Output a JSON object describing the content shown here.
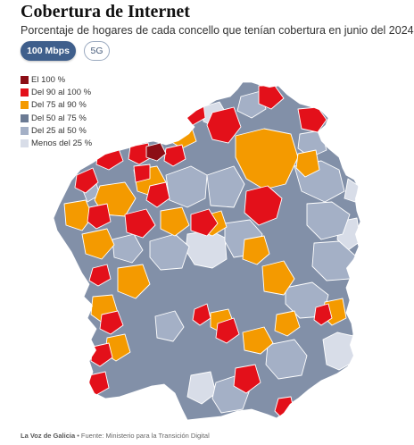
{
  "header": {
    "title": "Cobertura de Internet",
    "subtitle": "Porcentaje de hogares de cada concello que tenían cobertura en junio del 2024"
  },
  "tabs": [
    {
      "label": "100 Mbps",
      "active": true
    },
    {
      "label": "5G",
      "active": false
    }
  ],
  "legend": [
    {
      "label": "El 100 %",
      "color": "#8c0e16"
    },
    {
      "label": "Del 90 al 100 %",
      "color": "#e3101a"
    },
    {
      "label": "Del 75 al 90 %",
      "color": "#f49a00"
    },
    {
      "label": "Del 50 al 75 %",
      "color": "#6b7a93"
    },
    {
      "label": "Del 25 al 50 %",
      "color": "#a4b0c6"
    },
    {
      "label": "Menos del 25 %",
      "color": "#d8dde8"
    }
  ],
  "footer": {
    "brand": "La Voz de Galicia",
    "source": " • Fuente: Ministerio para la Transición Digital"
  }
}
